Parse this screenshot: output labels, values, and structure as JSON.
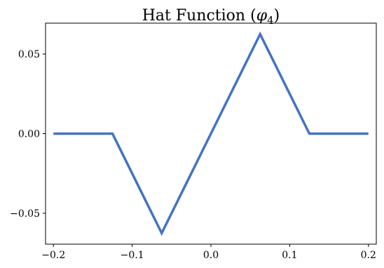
{
  "chart_data": {
    "type": "line",
    "title": {
      "prefix": "Hat Function (",
      "symbol": "φ",
      "subscript": "4",
      "suffix": ")"
    },
    "xlabel": "",
    "ylabel": "",
    "xlim": [
      -0.21,
      0.21
    ],
    "ylim": [
      -0.0694,
      0.0694
    ],
    "x_ticks": [
      -0.2,
      -0.1,
      0.0,
      0.1,
      0.2
    ],
    "x_tick_labels": [
      "−0.2",
      "−0.1",
      "0.0",
      "0.1",
      "0.2"
    ],
    "y_ticks": [
      -0.05,
      0.0,
      0.05
    ],
    "y_tick_labels": [
      "−0.05",
      "0.00",
      "0.05"
    ],
    "grid": false,
    "legend": "none",
    "series": [
      {
        "color": "#4472c4",
        "x": [
          -0.2,
          -0.125,
          -0.0625,
          0.0,
          0.0625,
          0.125,
          0.2
        ],
        "y": [
          0.0,
          0.0,
          -0.0625,
          0.0,
          0.0625,
          0.0,
          0.0
        ]
      }
    ]
  }
}
